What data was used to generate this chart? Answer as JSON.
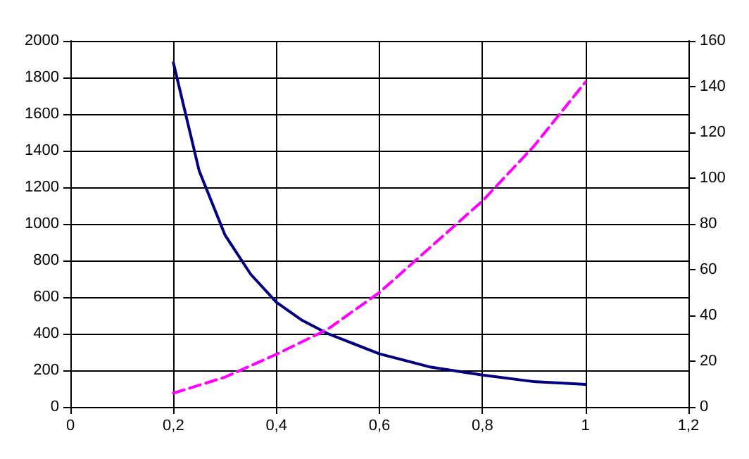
{
  "chart_data": {
    "type": "line",
    "x": [
      0.2,
      0.25,
      0.3,
      0.35,
      0.4,
      0.45,
      0.5,
      0.6,
      0.7,
      0.8,
      0.9,
      1.0
    ],
    "series": [
      {
        "color": "#000080",
        "values": [
          1880,
          1290,
          940,
          725,
          572,
          473,
          400,
          290,
          217,
          174,
          138,
          123
        ]
      },
      {
        "color": "#ff00ff",
        "axis": "y2",
        "line_style": "dashed",
        "x": [
          0.2,
          0.3,
          0.4,
          0.5,
          0.6,
          0.7,
          0.8,
          0.9,
          1.0
        ],
        "values": [
          6,
          13,
          23,
          34,
          50,
          70,
          90,
          114,
          142
        ]
      }
    ],
    "xlim": [
      0,
      1.2
    ],
    "xticks": [
      0,
      {
        "value": 0.2,
        "label": "0,2"
      },
      {
        "value": 0.4,
        "label": "0,4"
      },
      {
        "value": 0.6,
        "label": "0,6"
      },
      {
        "value": 0.8,
        "label": "0,8"
      },
      1,
      {
        "value": 1.2,
        "label": "1,2"
      }
    ],
    "ylim": [
      0,
      2000
    ],
    "yticks": [
      0,
      200,
      400,
      600,
      800,
      1000,
      1200,
      1400,
      1600,
      1800,
      2000
    ],
    "y2lim": [
      0,
      160
    ],
    "y2ticks": [
      0,
      20,
      40,
      60,
      80,
      100,
      120,
      140,
      160
    ],
    "grid": true
  }
}
